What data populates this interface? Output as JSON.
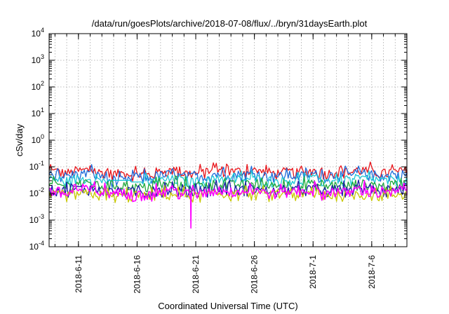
{
  "chart_data": {
    "type": "line",
    "title": "/data/run/goesPlots/archive/2018-07-08/flux/../bryn/31daysEarth.plot",
    "xlabel": "Coordinated Universal Time (UTC)",
    "ylabel": "cSv/day",
    "yscale": "log",
    "ylim": [
      0.0001,
      10000
    ],
    "y_ticks": [
      {
        "base": "10",
        "exp": "-4",
        "value": 0.0001
      },
      {
        "base": "10",
        "exp": "-3",
        "value": 0.001
      },
      {
        "base": "10",
        "exp": "-2",
        "value": 0.01
      },
      {
        "base": "10",
        "exp": "-1",
        "value": 0.1
      },
      {
        "base": "10",
        "exp": "0",
        "value": 1
      },
      {
        "base": "10",
        "exp": "1",
        "value": 10
      },
      {
        "base": "10",
        "exp": "2",
        "value": 100
      },
      {
        "base": "10",
        "exp": "3",
        "value": 1000
      },
      {
        "base": "10",
        "exp": "4",
        "value": 10000
      }
    ],
    "xlim": [
      "2018-06-08T12:00",
      "2018-07-08T23:59"
    ],
    "x_ticks": [
      "2018-6-11",
      "2018-6-16",
      "2018-6-21",
      "2018-6-26",
      "2018-7-1",
      "2018-7-6"
    ],
    "grid": true,
    "legend": "none",
    "series": [
      {
        "color": "#e8141a",
        "values": [
          0.068,
          0.06,
          0.071,
          0.075,
          0.062,
          0.055,
          0.058,
          0.052,
          0.05,
          0.064,
          0.07,
          0.058,
          0.056,
          0.06,
          0.074,
          0.066,
          0.069,
          0.072,
          0.063,
          0.058,
          0.065,
          0.06,
          0.071,
          0.058,
          0.067,
          0.062,
          0.075,
          0.069,
          0.058,
          0.064,
          0.072
        ]
      },
      {
        "color": "#1f6bd9",
        "values": [
          0.05,
          0.045,
          0.053,
          0.056,
          0.047,
          0.029,
          0.03,
          0.04,
          0.038,
          0.048,
          0.052,
          0.044,
          0.042,
          0.046,
          0.055,
          0.05,
          0.051,
          0.054,
          0.047,
          0.044,
          0.048,
          0.046,
          0.053,
          0.044,
          0.05,
          0.047,
          0.056,
          0.051,
          0.044,
          0.048,
          0.054
        ]
      },
      {
        "color": "#1ec8d6",
        "values": [
          0.033,
          0.03,
          0.035,
          0.036,
          0.031,
          0.031,
          0.031,
          0.027,
          0.026,
          0.032,
          0.034,
          0.029,
          0.028,
          0.031,
          0.036,
          0.033,
          0.034,
          0.035,
          0.031,
          0.029,
          0.032,
          0.03,
          0.035,
          0.029,
          0.033,
          0.031,
          0.036,
          0.034,
          0.029,
          0.032,
          0.035
        ]
      },
      {
        "color": "#1fa83a",
        "values": [
          0.021,
          0.019,
          0.022,
          0.023,
          0.02,
          0.021,
          0.021,
          0.017,
          0.017,
          0.02,
          0.022,
          0.019,
          0.018,
          0.02,
          0.023,
          0.021,
          0.022,
          0.022,
          0.02,
          0.019,
          0.021,
          0.019,
          0.022,
          0.019,
          0.021,
          0.02,
          0.023,
          0.022,
          0.019,
          0.02,
          0.022
        ]
      },
      {
        "color": "#1a1aa8",
        "values": [
          0.014,
          0.013,
          0.015,
          0.015,
          0.013,
          0.012,
          0.012,
          0.012,
          0.011,
          0.013,
          0.014,
          0.012,
          0.012,
          0.013,
          0.015,
          0.014,
          0.014,
          0.015,
          0.013,
          0.012,
          0.014,
          0.013,
          0.015,
          0.012,
          0.014,
          0.013,
          0.015,
          0.014,
          0.012,
          0.013,
          0.015
        ]
      },
      {
        "color": "#c8c800",
        "values": [
          0.009,
          0.0085,
          0.0095,
          0.01,
          0.0088,
          0.0078,
          0.0078,
          0.008,
          0.0078,
          0.0088,
          0.0093,
          0.0085,
          0.0082,
          0.0088,
          0.0098,
          0.009,
          0.0092,
          0.0096,
          0.0088,
          0.0084,
          0.009,
          0.0086,
          0.0095,
          0.0084,
          0.009,
          0.0088,
          0.0098,
          0.0092,
          0.0084,
          0.0088,
          0.0096
        ]
      },
      {
        "color": "#ff00ff",
        "values": [
          0.012,
          0.01,
          0.013,
          0.014,
          0.011,
          0.0105,
          0.0105,
          0.009,
          0.0085,
          0.011,
          0.012,
          0.01,
          0.0095,
          0.0105,
          0.0135,
          0.0115,
          0.012,
          0.013,
          0.011,
          0.01,
          0.0115,
          0.0105,
          0.013,
          0.01,
          0.012,
          0.011,
          0.014,
          0.012,
          0.01,
          0.011,
          0.013
        ]
      }
    ],
    "annotations": [
      {
        "series": 6,
        "date": "2018-06-20T14:00",
        "value": 0.0005
      }
    ]
  }
}
